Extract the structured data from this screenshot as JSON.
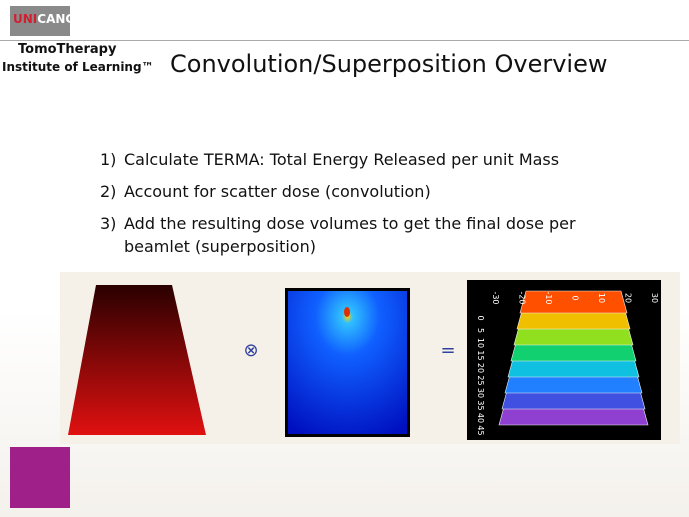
{
  "logo": {
    "part1": "UNI",
    "part2": "CANCER"
  },
  "header": {
    "brand": "TomoTherapy",
    "subtitle": "Institute of Learning™",
    "title": "Convolution/Superposition Overview"
  },
  "list": [
    {
      "number": "1)",
      "lines": [
        "Calculate TERMA: Total Energy Released per unit Mass"
      ]
    },
    {
      "number": "2)",
      "lines": [
        "Account for scatter dose (convolution)"
      ]
    },
    {
      "number": "3)",
      "lines": [
        "Add the resulting dose volumes to get the final dose per",
        "beamlet (superposition)"
      ]
    }
  ],
  "figure": {
    "operator1": "⊗",
    "operator2": "=",
    "x_labels": [
      "-30",
      "-20",
      "-10",
      "0",
      "10",
      "20",
      "30"
    ],
    "y_labels": [
      "0",
      "5",
      "10",
      "15",
      "20",
      "25",
      "30",
      "35",
      "40",
      "45"
    ]
  }
}
